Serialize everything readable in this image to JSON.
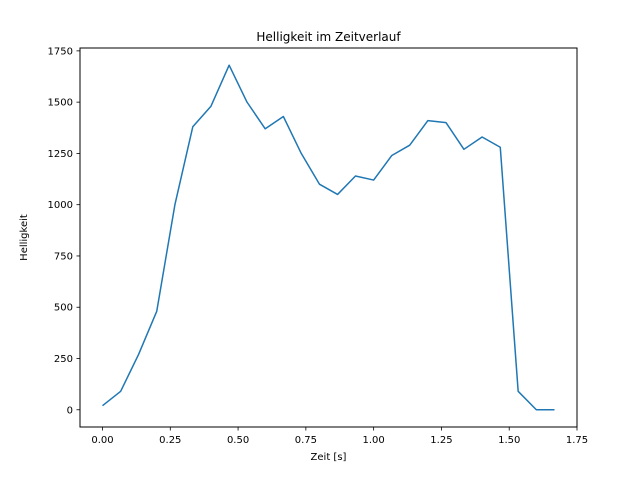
{
  "chart_data": {
    "type": "line",
    "title": "Helligkeit im Zeitverlauf",
    "xlabel": "Zeit [s]",
    "ylabel": "Helligkeit",
    "xlim": [
      -0.083,
      1.75
    ],
    "ylim": [
      -84,
      1764
    ],
    "grid": false,
    "legend": "none",
    "line_color": "#1f77b4",
    "line_width": 1.5,
    "x": [
      0.0,
      0.067,
      0.133,
      0.2,
      0.267,
      0.333,
      0.4,
      0.467,
      0.533,
      0.6,
      0.667,
      0.733,
      0.8,
      0.867,
      0.933,
      1.0,
      1.067,
      1.133,
      1.2,
      1.267,
      1.333,
      1.4,
      1.467,
      1.533,
      1.6,
      1.667
    ],
    "y": [
      20,
      90,
      270,
      480,
      1000,
      1380,
      1480,
      1680,
      1500,
      1370,
      1430,
      1250,
      1100,
      1050,
      1140,
      1120,
      1240,
      1290,
      1410,
      1400,
      1270,
      1330,
      1280,
      90,
      0,
      0
    ],
    "xticks": {
      "values": [
        0.0,
        0.25,
        0.5,
        0.75,
        1.0,
        1.25,
        1.5,
        1.75
      ],
      "labels": [
        "0.00",
        "0.25",
        "0.50",
        "0.75",
        "1.00",
        "1.25",
        "1.50",
        "1.75"
      ]
    },
    "yticks": {
      "values": [
        0,
        250,
        500,
        750,
        1000,
        1250,
        1500,
        1750
      ],
      "labels": [
        "0",
        "250",
        "500",
        "750",
        "1000",
        "1250",
        "1500",
        "1750"
      ]
    }
  }
}
